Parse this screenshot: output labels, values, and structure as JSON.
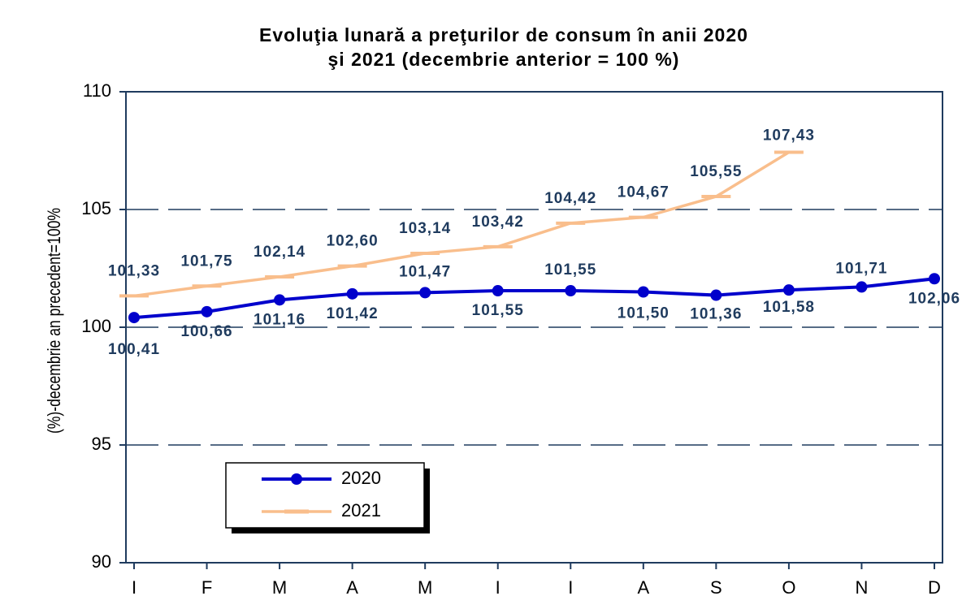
{
  "chart_data": {
    "type": "line",
    "title": [
      "Evoluţia lunară a preţurilor de consum în anii  2020",
      "şi 2021 (decembrie anterior = 100 %)"
    ],
    "y_label": "(%)-decembrie an precedent=100%",
    "categories": [
      "I",
      "F",
      "M",
      "A",
      "M",
      "I",
      "I",
      "A",
      "S",
      "O",
      "N",
      "D"
    ],
    "series": [
      {
        "name": "2020",
        "color": "#0000cc",
        "marker": "circle",
        "values": [
          100.41,
          100.66,
          101.16,
          101.42,
          101.47,
          101.55,
          101.55,
          101.5,
          101.36,
          101.58,
          101.71,
          102.06
        ],
        "value_labels": [
          "100,41",
          "100,66",
          "101,16",
          "101,42",
          "101,47",
          "101,55",
          "101,55",
          "101,50",
          "101,36",
          "101,58",
          "101,71",
          "102,06"
        ]
      },
      {
        "name": "2021",
        "color": "#f9be8c",
        "marker": "dash",
        "values": [
          101.33,
          101.75,
          102.14,
          102.6,
          103.14,
          103.42,
          104.42,
          104.67,
          105.55,
          107.43,
          null,
          null
        ],
        "value_labels": [
          "101,33",
          "101,75",
          "102,14",
          "102,60",
          "103,14",
          "103,42",
          "104,42",
          "104,67",
          "105,55",
          "107,43",
          null,
          null
        ]
      }
    ],
    "ylim": [
      90,
      110
    ],
    "yticks": [
      90,
      95,
      100,
      105,
      110
    ],
    "grid": true
  }
}
